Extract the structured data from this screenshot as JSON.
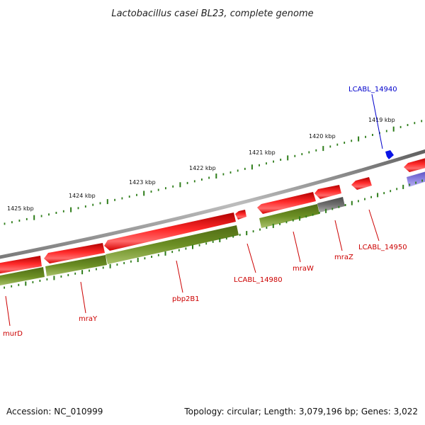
{
  "title": "Lactobacillus casei BL23, complete genome",
  "footer": {
    "accession": "Accession: NC_010999",
    "topology": "Topology: circular; Length: 3,079,196 bp; Genes: 3,022"
  },
  "colors": {
    "backbone": "#8a8a8a",
    "forward_tick": "#2e7d1a",
    "feature_red": "#e8141a",
    "feature_green": "#6b8e23",
    "feature_grey": "#6e6e6e",
    "feature_purple": "#7b6fd6",
    "label_red": "#cc0000",
    "label_blue": "#0000cc",
    "marker_blue": "#0a14e6"
  },
  "scale": {
    "ticks": [
      "1425 kbp",
      "1424 kbp",
      "1423 kbp",
      "1422 kbp",
      "1421 kbp",
      "1420 kbp",
      "1419 kbp"
    ]
  },
  "features": [
    {
      "label": "murD",
      "color": "red"
    },
    {
      "label": "mraY",
      "color": "red"
    },
    {
      "label": "pbp2B1",
      "color": "red"
    },
    {
      "label": "LCABL_14980",
      "color": "red"
    },
    {
      "label": "mraW",
      "color": "red"
    },
    {
      "label": "mraZ",
      "color": "red"
    },
    {
      "label": "LCABL_14950",
      "color": "red"
    },
    {
      "label": "LCABL_14940",
      "color": "blue"
    }
  ]
}
